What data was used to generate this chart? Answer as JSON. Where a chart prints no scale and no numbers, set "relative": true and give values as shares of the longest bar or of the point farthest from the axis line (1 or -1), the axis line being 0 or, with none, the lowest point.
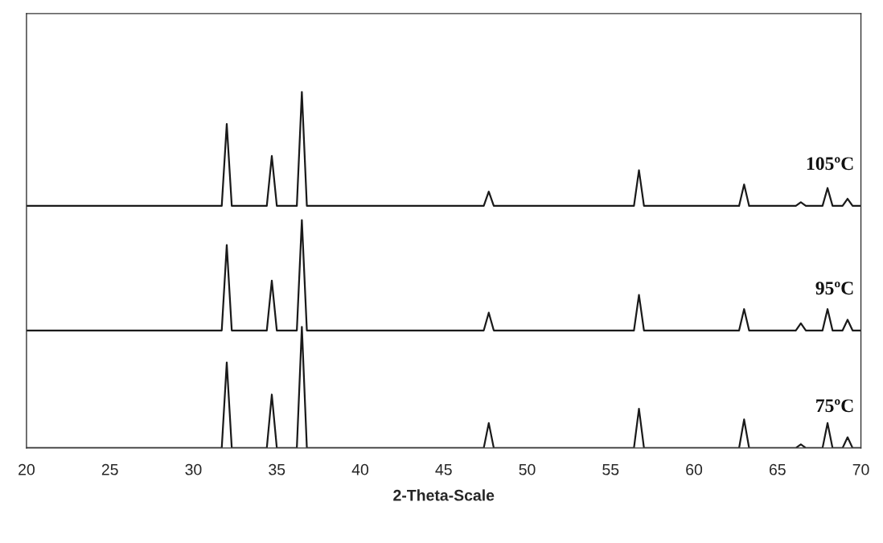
{
  "chart_data": {
    "type": "line",
    "xlabel": "2-Theta-Scale",
    "relative": true,
    "xlim": [
      20,
      70
    ],
    "xticks": [
      20,
      25,
      30,
      35,
      40,
      45,
      50,
      55,
      60,
      65,
      70
    ],
    "grid": false,
    "legend": false,
    "marker": "none",
    "line_style": "solid",
    "x": [
      20,
      31.7,
      32,
      32.3,
      34.4,
      34.7,
      35,
      36.2,
      36.5,
      36.8,
      47.4,
      47.7,
      48,
      56.4,
      56.7,
      57,
      62.7,
      63,
      63.3,
      66.1,
      66.4,
      66.7,
      67.7,
      68,
      68.3,
      68.9,
      69.2,
      69.5,
      70
    ],
    "series": [
      {
        "name": "105ºC",
        "color": "#1a1a1a",
        "values": [
          0.68,
          0.68,
          0.91,
          0.68,
          0.68,
          0.82,
          0.68,
          0.68,
          1,
          0.68,
          0.68,
          0.72,
          0.68,
          0.68,
          0.78,
          0.68,
          0.68,
          0.74,
          0.68,
          0.68,
          0.69,
          0.68,
          0.68,
          0.73,
          0.68,
          0.68,
          0.7,
          0.68,
          0.68
        ]
      },
      {
        "name": "95ºC",
        "color": "#1a1a1a",
        "values": [
          0.33,
          0.33,
          0.57,
          0.33,
          0.33,
          0.47,
          0.33,
          0.33,
          0.64,
          0.33,
          0.33,
          0.38,
          0.33,
          0.33,
          0.43,
          0.33,
          0.33,
          0.39,
          0.33,
          0.33,
          0.35,
          0.33,
          0.33,
          0.39,
          0.33,
          0.33,
          0.36,
          0.33,
          0.33
        ]
      },
      {
        "name": "75ºC",
        "color": "#1a1a1a",
        "values": [
          0,
          0,
          0.24,
          0,
          0,
          0.15,
          0,
          0,
          0.34,
          0,
          0,
          0.07,
          0,
          0,
          0.11,
          0,
          0,
          0.08,
          0,
          0,
          0.01,
          0,
          0,
          0.07,
          0,
          0,
          0.03,
          0,
          0
        ]
      }
    ]
  }
}
